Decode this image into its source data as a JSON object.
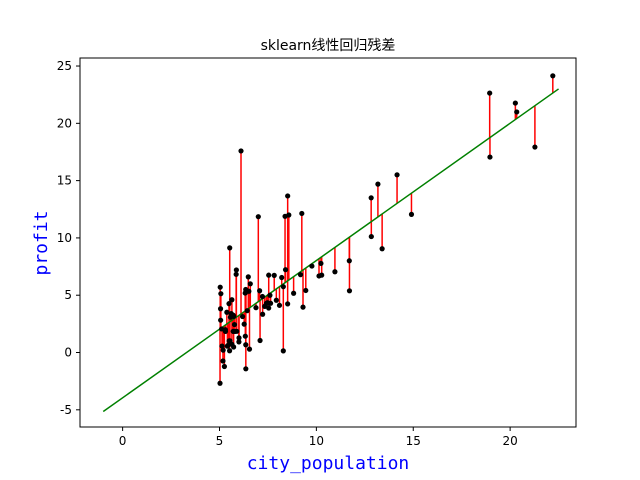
{
  "chart_data": {
    "type": "scatter",
    "title": "sklearn线性回归残差",
    "xlabel": "city_population",
    "ylabel": "profit",
    "label_color": "#0000ff",
    "xlim": [
      -2.2,
      23.4
    ],
    "ylim": [
      -6.5,
      25.7
    ],
    "x_ticks": [
      0,
      5,
      10,
      15,
      20
    ],
    "y_ticks": [
      -5,
      0,
      5,
      10,
      15,
      20,
      25
    ],
    "grid": false,
    "regression_line": {
      "color": "#008000",
      "x": [
        -1.0,
        22.5
      ],
      "y": [
        -5.15,
        23.0
      ]
    },
    "colors": {
      "points": "#000000",
      "residuals": "#ff0000",
      "line": "#008000"
    },
    "series": [
      {
        "type": "scatter",
        "x": [
          6.1101,
          5.5277,
          8.5186,
          7.0032,
          5.8598,
          8.3829,
          7.4764,
          8.5781,
          6.4862,
          5.0546,
          5.7107,
          14.164,
          5.734,
          8.4084,
          5.6407,
          5.3794,
          6.3654,
          5.1301,
          6.4296,
          7.0708,
          6.1891,
          20.27,
          5.4901,
          6.3261,
          5.5649,
          18.945,
          12.828,
          10.957,
          13.176,
          22.203,
          5.2524,
          6.5894,
          9.2482,
          5.8918,
          8.2111,
          7.9334,
          8.0959,
          5.6063,
          12.836,
          6.3534,
          5.4069,
          6.8825,
          11.708,
          5.7737,
          7.8247,
          7.0931,
          5.0702,
          5.8014,
          11.7,
          5.5416,
          7.5402,
          5.3077,
          7.4239,
          7.6031,
          6.3328,
          6.3589,
          6.2742,
          5.6397,
          9.3102,
          9.4536,
          8.8254,
          5.1793,
          21.279,
          14.908,
          18.959,
          7.2182,
          8.2951,
          10.236,
          5.4994,
          20.341,
          10.136,
          7.3345,
          6.0062,
          7.2259,
          5.0269,
          6.5479,
          7.5386,
          5.0365,
          10.274,
          5.1077,
          5.7292,
          5.1884,
          6.3557,
          9.7687,
          6.5159,
          8.5172,
          9.1802,
          6.002,
          5.5204,
          5.0594,
          5.7077,
          7.6366,
          5.8707,
          5.3054,
          8.2934,
          13.394,
          5.4369
        ],
        "y": [
          17.592,
          9.1302,
          13.662,
          11.854,
          6.8233,
          11.886,
          4.3483,
          12.0,
          6.5987,
          3.8166,
          3.2522,
          15.505,
          3.1551,
          7.2258,
          0.71618,
          3.5129,
          5.3048,
          0.56077,
          3.6518,
          5.3893,
          3.1386,
          21.767,
          4.263,
          5.1875,
          3.0825,
          22.638,
          13.501,
          7.0467,
          14.692,
          24.147,
          -1.22,
          5.9966,
          12.134,
          1.8495,
          6.5426,
          4.5623,
          4.1164,
          3.3928,
          10.117,
          5.4974,
          0.55657,
          3.9115,
          5.3854,
          2.4406,
          6.7318,
          1.0463,
          5.1337,
          1.844,
          8.0043,
          1.0179,
          6.7504,
          1.8396,
          4.2885,
          4.9981,
          1.4233,
          -1.4211,
          2.4756,
          4.6042,
          3.9624,
          5.4141,
          5.1694,
          -0.74279,
          17.929,
          12.054,
          17.054,
          4.8852,
          5.7442,
          7.7754,
          1.0173,
          20.992,
          6.6799,
          4.0259,
          1.2784,
          3.3411,
          -2.6807,
          0.29678,
          3.8845,
          5.7014,
          6.7526,
          2.0576,
          0.47953,
          0.20421,
          0.67861,
          7.5435,
          5.3436,
          4.2415,
          6.7981,
          0.92695,
          0.152,
          2.8214,
          1.8451,
          4.2959,
          7.2029,
          1.9869,
          0.14454,
          9.0551,
          0.61705
        ]
      }
    ]
  }
}
